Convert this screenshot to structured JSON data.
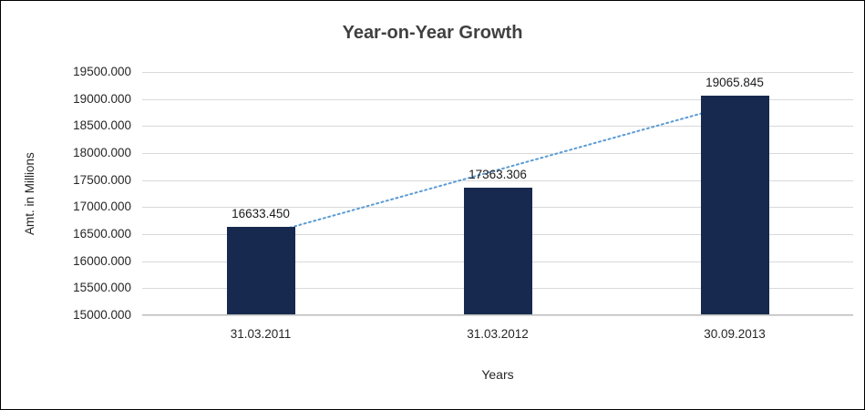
{
  "chart_data": {
    "type": "bar",
    "title": "Year-on-Year Growth",
    "xlabel": "Years",
    "ylabel": "Amt. in Millions",
    "categories": [
      "31.03.2011",
      "31.03.2012",
      "30.09.2013"
    ],
    "values": [
      16633.45,
      17363.306,
      19065.845
    ],
    "value_labels": [
      "16633.450",
      "17363.306",
      "19065.845"
    ],
    "ylim": [
      15000,
      19500
    ],
    "ytick_step": 500,
    "ytick_labels": [
      "15000.000",
      "15500.000",
      "16000.000",
      "16500.000",
      "17000.000",
      "17500.000",
      "18000.000",
      "18500.000",
      "19000.000",
      "19500.000"
    ],
    "grid": true,
    "legend": "none",
    "bar_color": "#17294e",
    "gridline_color": "#d9d9d9",
    "axis_text_color": "#262626",
    "title_color": "#404040",
    "trendline": {
      "type": "linear",
      "style": "dotted",
      "color": "#5b9bd5"
    }
  }
}
